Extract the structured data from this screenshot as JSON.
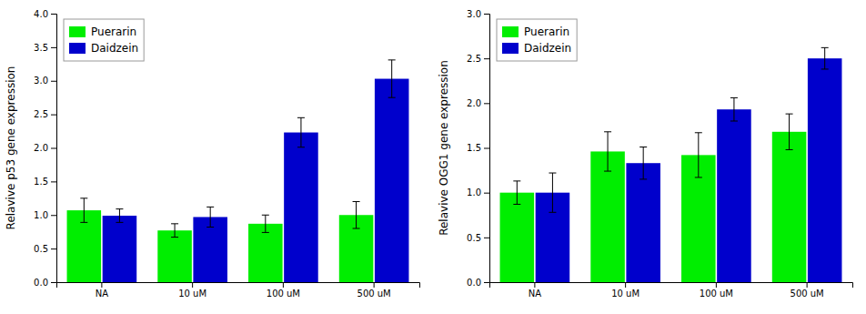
{
  "chart_data": [
    {
      "type": "bar",
      "categories": [
        "NA",
        "10 uM",
        "100 uM",
        "500 uM"
      ],
      "series": [
        {
          "name": "Puerarin",
          "color": "#00EE00",
          "values": [
            1.07,
            0.77,
            0.87,
            1.0
          ],
          "errors": [
            0.18,
            0.1,
            0.13,
            0.2
          ]
        },
        {
          "name": "Daidzein",
          "color": "#0000CC",
          "values": [
            0.99,
            0.97,
            2.23,
            3.03
          ],
          "errors": [
            0.1,
            0.15,
            0.22,
            0.28
          ]
        }
      ],
      "ylabel": "Relavive p53 gene expression",
      "ylim": [
        0,
        4.0
      ],
      "yticks": [
        {
          "value": 0,
          "label": "0.0"
        },
        0.5,
        {
          "value": 1,
          "label": "1.0"
        },
        1.5,
        {
          "value": 2,
          "label": "2.0"
        },
        2.5,
        {
          "value": 3,
          "label": "3.0"
        },
        3.5,
        {
          "value": 4,
          "label": "4.0"
        }
      ],
      "legend": "upper left"
    },
    {
      "type": "bar",
      "categories": [
        "NA",
        "10 uM",
        "100 uM",
        "500 uM"
      ],
      "series": [
        {
          "name": "Puerarin",
          "color": "#00EE00",
          "values": [
            1.0,
            1.46,
            1.42,
            1.68
          ],
          "errors": [
            0.13,
            0.22,
            0.25,
            0.2
          ]
        },
        {
          "name": "Daidzein",
          "color": "#0000CC",
          "values": [
            1.0,
            1.33,
            1.93,
            2.5
          ],
          "errors": [
            0.22,
            0.18,
            0.13,
            0.12
          ]
        }
      ],
      "ylabel": "Relavive OGG1 gene expression",
      "ylim": [
        0,
        3.0
      ],
      "yticks": [
        {
          "value": 0,
          "label": "0.0"
        },
        0.5,
        {
          "value": 1,
          "label": "1.0"
        },
        1.5,
        {
          "value": 2,
          "label": "2.0"
        },
        2.5,
        {
          "value": 3,
          "label": "3.0"
        }
      ],
      "legend": "upper left"
    }
  ]
}
